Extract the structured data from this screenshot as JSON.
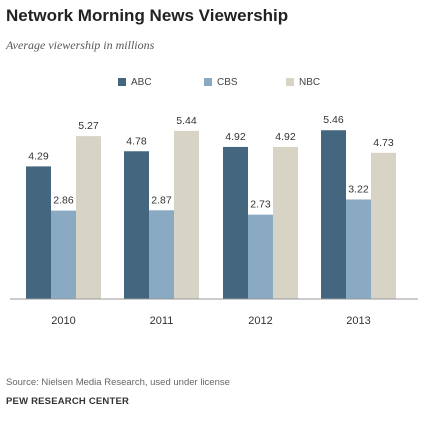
{
  "header": {
    "title": "Network Morning News Viewership",
    "subtitle": "Average viewership in millions"
  },
  "chart_data": {
    "type": "bar",
    "categories": [
      "2010",
      "2011",
      "2012",
      "2013"
    ],
    "series": [
      {
        "name": "ABC",
        "color": "#44677f",
        "values": [
          4.29,
          4.78,
          4.92,
          5.46
        ]
      },
      {
        "name": "CBS",
        "color": "#8aa9c3",
        "values": [
          2.86,
          2.87,
          2.73,
          3.22
        ]
      },
      {
        "name": "NBC",
        "color": "#d7d4c6",
        "values": [
          5.27,
          5.44,
          4.92,
          4.73
        ]
      }
    ],
    "value_labels": [
      [
        "4.29",
        "4.78",
        "4.92",
        "5.46"
      ],
      [
        "2.86",
        "2.87",
        "2.73",
        "3.22"
      ],
      [
        "5.27",
        "5.44",
        "4.92",
        "4.73"
      ]
    ],
    "ylim": [
      0,
      6.6
    ],
    "grid": false,
    "legend_position": "top-center"
  },
  "footer": {
    "source": "Source: Nielsen Media Research, used under license",
    "org": "PEW RESEARCH CENTER"
  }
}
